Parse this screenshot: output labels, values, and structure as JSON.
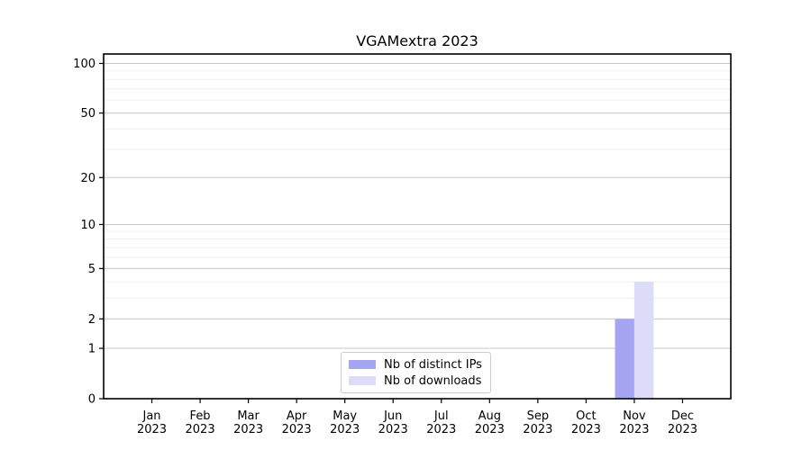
{
  "chart_data": {
    "type": "bar",
    "title": "VGAMextra 2023",
    "categories": [
      "Jan",
      "Feb",
      "Mar",
      "Apr",
      "May",
      "Jun",
      "Jul",
      "Aug",
      "Sep",
      "Oct",
      "Nov",
      "Dec"
    ],
    "year_label": "2023",
    "series": [
      {
        "name": "Nb of distinct IPs",
        "color": "#a5a5f2",
        "values": [
          0,
          0,
          0,
          0,
          0,
          0,
          0,
          0,
          0,
          0,
          2,
          0
        ]
      },
      {
        "name": "Nb of downloads",
        "color": "#dcdcf8",
        "values": [
          0,
          0,
          0,
          0,
          0,
          0,
          0,
          0,
          0,
          0,
          4,
          0
        ]
      }
    ],
    "yscale": "log1p",
    "yticks": [
      0,
      1,
      2,
      5,
      10,
      20,
      50,
      100
    ],
    "y_minor_gridlines": [
      3,
      4,
      6,
      7,
      8,
      9,
      30,
      40,
      60,
      70,
      80,
      90
    ],
    "ylim": [
      0,
      114
    ],
    "xlim": [
      -1,
      12
    ],
    "bar_width": 0.4,
    "grid": true,
    "legend_position": "lower center",
    "colors": {
      "major_grid": "#c8c8c8",
      "minor_grid": "#efefef",
      "spine": "#000000",
      "text": "#000000",
      "background": "#ffffff"
    }
  }
}
